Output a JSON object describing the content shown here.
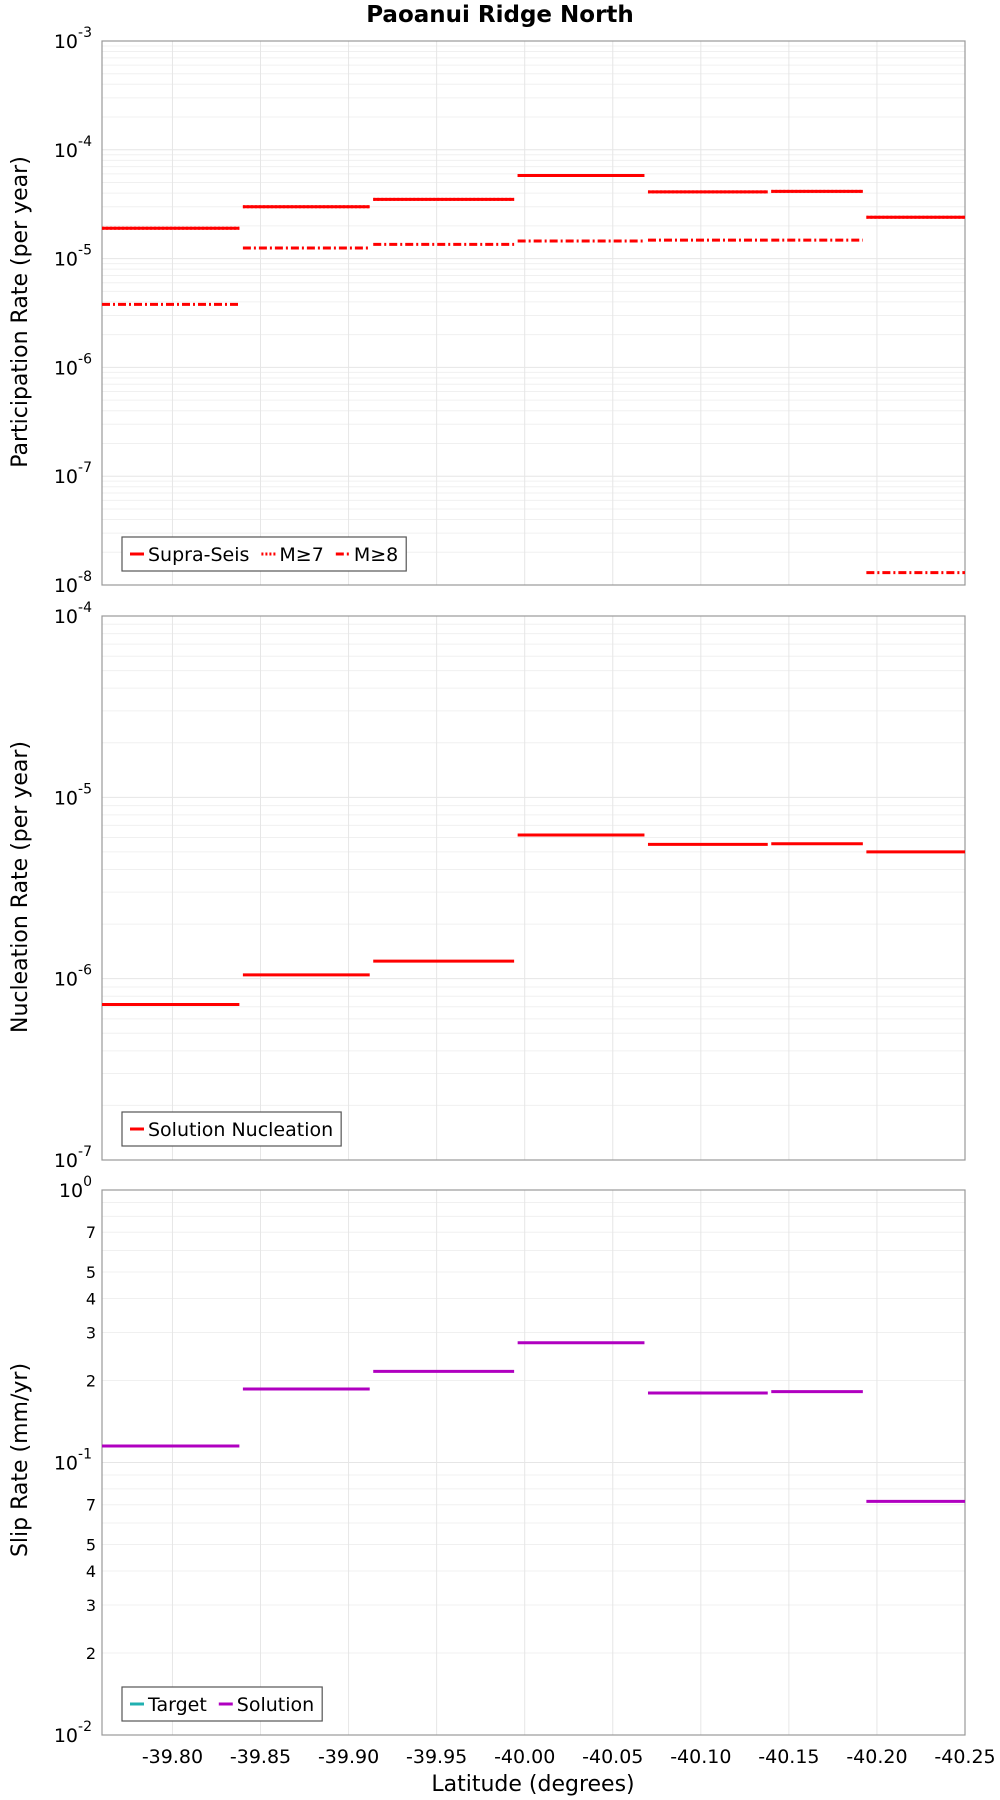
{
  "colors": {
    "red": "#ff0000",
    "magenta": "#b000c0",
    "teal": "#20b0b0",
    "grid": "#e6e6e6",
    "frame": "#999999"
  },
  "chart_data": [
    {
      "type": "line",
      "title": "Paoanui Ridge North",
      "xlabel": "",
      "ylabel": "Participation Rate (per year)",
      "yscale": "log",
      "xlim": [
        -39.76,
        -40.25
      ],
      "ylim": [
        1e-08,
        0.001
      ],
      "x_ticks": [
        "-39.80",
        "-39.85",
        "-39.90",
        "-39.95",
        "-40.00",
        "-40.05",
        "-40.10",
        "-40.15",
        "-40.20",
        "-40.25"
      ],
      "y_ticks": [
        {
          "base": "10",
          "exp": "-3"
        },
        {
          "base": "10",
          "exp": "-4"
        },
        {
          "base": "10",
          "exp": "-5"
        },
        {
          "base": "10",
          "exp": "-6"
        },
        {
          "base": "10",
          "exp": "-7"
        },
        {
          "base": "10",
          "exp": "-8"
        }
      ],
      "legend": [
        "Supra-Seis",
        "M≥7",
        "M≥8"
      ],
      "legend_position": "bottom-left",
      "series": [
        {
          "name": "Supra-Seis",
          "style": "solid",
          "segments": [
            [
              -39.76,
              -39.838,
              1.9e-05
            ],
            [
              -39.84,
              -39.912,
              3e-05
            ],
            [
              -39.914,
              -39.994,
              3.5e-05
            ],
            [
              -39.996,
              -40.068,
              5.8e-05
            ],
            [
              -40.07,
              -40.138,
              4.1e-05
            ],
            [
              -40.14,
              -40.192,
              4.15e-05
            ],
            [
              -40.194,
              -40.25,
              2.4e-05
            ]
          ]
        },
        {
          "name": "M≥7",
          "style": "dotted",
          "segments": [
            [
              -39.76,
              -39.838,
              1.9e-05
            ],
            [
              -39.84,
              -39.912,
              3e-05
            ],
            [
              -39.914,
              -39.994,
              3.5e-05
            ],
            [
              -39.996,
              -40.068,
              5.8e-05
            ],
            [
              -40.07,
              -40.138,
              4.1e-05
            ],
            [
              -40.14,
              -40.192,
              4.15e-05
            ],
            [
              -40.194,
              -40.25,
              2.4e-05
            ]
          ]
        },
        {
          "name": "M≥8",
          "style": "dashdot",
          "segments": [
            [
              -39.76,
              -39.838,
              3.8e-06
            ],
            [
              -39.84,
              -39.912,
              1.25e-05
            ],
            [
              -39.914,
              -39.994,
              1.35e-05
            ],
            [
              -39.996,
              -40.068,
              1.45e-05
            ],
            [
              -40.07,
              -40.138,
              1.48e-05
            ],
            [
              -40.14,
              -40.192,
              1.48e-05
            ],
            [
              -40.194,
              -40.25,
              1.3e-08
            ]
          ]
        }
      ]
    },
    {
      "type": "line",
      "xlabel": "",
      "ylabel": "Nucleation Rate (per year)",
      "yscale": "log",
      "xlim": [
        -39.76,
        -40.25
      ],
      "ylim": [
        1e-07,
        0.0001
      ],
      "y_ticks": [
        {
          "base": "10",
          "exp": "-4"
        },
        {
          "base": "10",
          "exp": "-5"
        },
        {
          "base": "10",
          "exp": "-6"
        },
        {
          "base": "10",
          "exp": "-7"
        }
      ],
      "legend": [
        "Solution Nucleation"
      ],
      "legend_position": "bottom-left",
      "series": [
        {
          "name": "Solution Nucleation",
          "style": "solid",
          "segments": [
            [
              -39.76,
              -39.838,
              7.2e-07
            ],
            [
              -39.84,
              -39.912,
              1.05e-06
            ],
            [
              -39.914,
              -39.994,
              1.25e-06
            ],
            [
              -39.996,
              -40.068,
              6.2e-06
            ],
            [
              -40.07,
              -40.138,
              5.5e-06
            ],
            [
              -40.14,
              -40.192,
              5.55e-06
            ],
            [
              -40.194,
              -40.25,
              5e-06
            ]
          ]
        }
      ]
    },
    {
      "type": "line",
      "xlabel": "Latitude (degrees)",
      "ylabel": "Slip Rate (mm/yr)",
      "yscale": "log",
      "xlim": [
        -39.76,
        -40.25
      ],
      "ylim": [
        0.01,
        1
      ],
      "y_ticks": [
        {
          "base": "10",
          "exp": "0"
        },
        {
          "base": "10",
          "exp": "-1"
        },
        {
          "base": "10",
          "exp": "-2"
        }
      ],
      "y_minor_ticks": [
        "7",
        "5",
        "4",
        "3",
        "2",
        "7",
        "5",
        "4",
        "3",
        "2"
      ],
      "legend": [
        "Target",
        "Solution"
      ],
      "legend_position": "bottom-left",
      "series": [
        {
          "name": "Target",
          "style": "solid",
          "segments": []
        },
        {
          "name": "Solution",
          "style": "solid",
          "segments": [
            [
              -39.76,
              -39.838,
              0.115
            ],
            [
              -39.84,
              -39.912,
              0.186
            ],
            [
              -39.914,
              -39.994,
              0.216
            ],
            [
              -39.996,
              -40.068,
              0.275
            ],
            [
              -40.07,
              -40.138,
              0.18
            ],
            [
              -40.14,
              -40.192,
              0.182
            ],
            [
              -40.194,
              -40.25,
              0.072
            ]
          ]
        }
      ]
    }
  ]
}
